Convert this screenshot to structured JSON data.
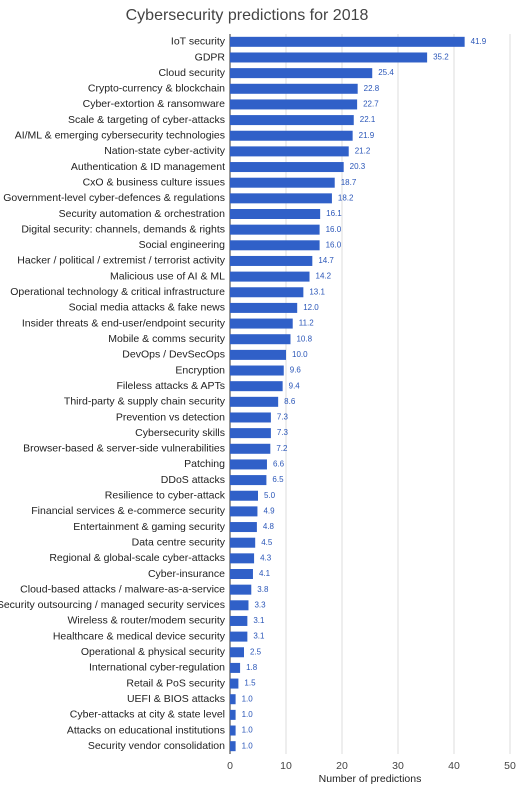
{
  "chart_data": {
    "type": "hbar",
    "title": "Cybersecurity predictions for 2018",
    "x_label": "Number of predictions",
    "categories": [
      "IoT security",
      "GDPR",
      "Cloud security",
      "Crypto-currency & blockchain",
      "Cyber-extortion & ransomware",
      "Scale & targeting of cyber-attacks",
      "AI/ML & emerging cybersecurity technologies",
      "Nation-state cyber-activity",
      "Authentication & ID management",
      "CxO & business culture issues",
      "Government-level cyber-defences & regulations",
      "Security automation & orchestration",
      "Digital security: channels, demands & rights",
      "Social engineering",
      "Hacker / political / extremist / terrorist activity",
      "Malicious use of AI & ML",
      "Operational technology & critical infrastructure",
      "Social media attacks & fake news",
      "Insider threats & end-user/endpoint security",
      "Mobile & comms security",
      "DevOps / DevSecOps",
      "Encryption",
      "Fileless attacks & APTs",
      "Third-party & supply chain security",
      "Prevention vs detection",
      "Cybersecurity skills",
      "Browser-based & server-side vulnerabilities",
      "Patching",
      "DDoS attacks",
      "Resilience to cyber-attack",
      "Financial services & e-commerce security",
      "Entertainment & gaming security",
      "Data centre security",
      "Regional & global-scale cyber-attacks",
      "Cyber-insurance",
      "Cloud-based attacks / malware-as-a-service",
      "Security outsourcing / managed security services",
      "Wireless & router/modem security",
      "Healthcare & medical device security",
      "Operational & physical security",
      "International cyber-regulation",
      "Retail & PoS security",
      "UEFI & BIOS attacks",
      "Cyber-attacks at city & state level",
      "Attacks on educational institutions",
      "Security vendor consolidation"
    ],
    "values": [
      41.9,
      35.2,
      25.4,
      22.8,
      22.7,
      22.1,
      21.9,
      21.2,
      20.3,
      18.7,
      18.2,
      16.1,
      16.0,
      16.0,
      14.7,
      14.2,
      13.1,
      12.0,
      11.2,
      10.8,
      10.0,
      9.6,
      9.4,
      8.6,
      7.3,
      7.3,
      7.2,
      6.6,
      6.5,
      5.0,
      4.9,
      4.8,
      4.5,
      4.3,
      4.1,
      3.8,
      3.3,
      3.1,
      3.1,
      2.5,
      1.8,
      1.5,
      1.0,
      1.0,
      1.0,
      1.0
    ],
    "value_labels": [
      "41.9",
      "35.2",
      "25.4",
      "22.8",
      "22.7",
      "22.1",
      "21.9",
      "21.2",
      "20.3",
      "18.7",
      "18.2",
      "16.1",
      "16.0",
      "16.0",
      "14.7",
      "14.2",
      "13.1",
      "12.0",
      "11.2",
      "10.8",
      "10.0",
      "9.6",
      "9.4",
      "8.6",
      "7.3",
      "7.3",
      "7.2",
      "6.6",
      "6.5",
      "5.0",
      "4.9",
      "4.8",
      "4.5",
      "4.3",
      "4.1",
      "3.8",
      "3.3",
      "3.1",
      "3.1",
      "2.5",
      "1.8",
      "1.5",
      "1.0",
      "1.0",
      "1.0",
      "1.0"
    ],
    "color": "#3060c8",
    "xlim": [
      0,
      50
    ],
    "xticks": [
      0,
      10,
      20,
      30,
      40,
      50
    ],
    "grid": true
  }
}
